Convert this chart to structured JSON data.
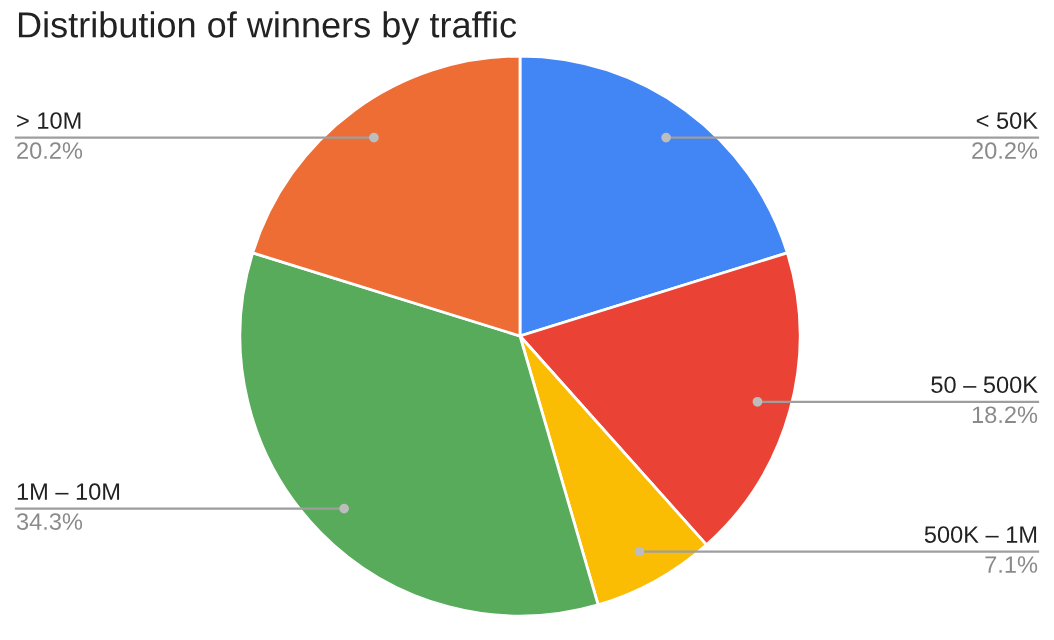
{
  "chart_data": {
    "type": "pie",
    "title": "Distribution of winners by traffic",
    "categories": [
      "< 50K",
      "50 – 500K",
      "500K – 1M",
      "1M – 10M",
      "> 10M"
    ],
    "values": [
      20.2,
      18.2,
      7.1,
      34.3,
      20.2
    ],
    "value_labels": [
      "20.2%",
      "18.2%",
      "7.1%",
      "34.3%",
      "20.2%"
    ],
    "colors": [
      "#4285f4",
      "#ea4335",
      "#fbbc04",
      "#57ab5a",
      "#ed6d35"
    ],
    "legend": false
  }
}
